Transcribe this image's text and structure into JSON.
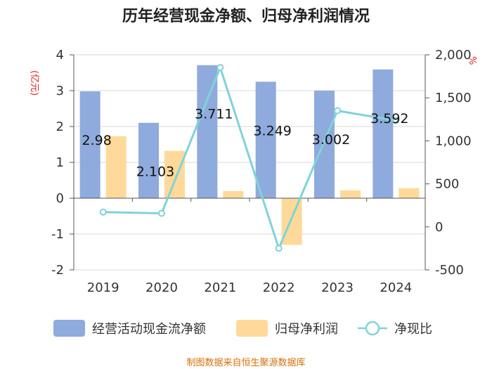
{
  "chart_data": {
    "type": "bar",
    "title": "历年经营现金净额、归母净利润情况",
    "categories": [
      "2019",
      "2020",
      "2021",
      "2022",
      "2023",
      "2024"
    ],
    "left_axis": {
      "unit": "(亿元)",
      "ylim": [
        -2,
        4
      ],
      "ticks": [
        "4",
        "3",
        "2",
        "1",
        "0",
        "-1",
        "-2"
      ]
    },
    "right_axis": {
      "unit": "%",
      "ylim": [
        -500,
        2000
      ],
      "ticks": [
        "2,000",
        "1,500",
        "1,000",
        "500",
        "0",
        "-500"
      ]
    },
    "series": [
      {
        "name": "经营活动现金流净额",
        "kind": "bar",
        "axis": "left",
        "color": "#8faadc",
        "values": [
          2.98,
          2.103,
          3.711,
          3.249,
          3.002,
          3.592
        ],
        "labels": [
          "2.98",
          "2.103",
          "3.711",
          "3.249",
          "3.002",
          "3.592"
        ]
      },
      {
        "name": "归母净利润",
        "kind": "bar",
        "axis": "left",
        "color": "#ffd999",
        "values": [
          1.73,
          1.32,
          0.2,
          -1.3,
          0.22,
          0.28
        ]
      },
      {
        "name": "净现比",
        "kind": "line",
        "axis": "right",
        "color": "#7fd3d8",
        "values": [
          172,
          158,
          1852,
          -250,
          1350,
          1235
        ]
      }
    ],
    "grid": true,
    "legend": "bottom"
  },
  "footer": {
    "source": "制图数据来自恒生聚源数据库"
  }
}
